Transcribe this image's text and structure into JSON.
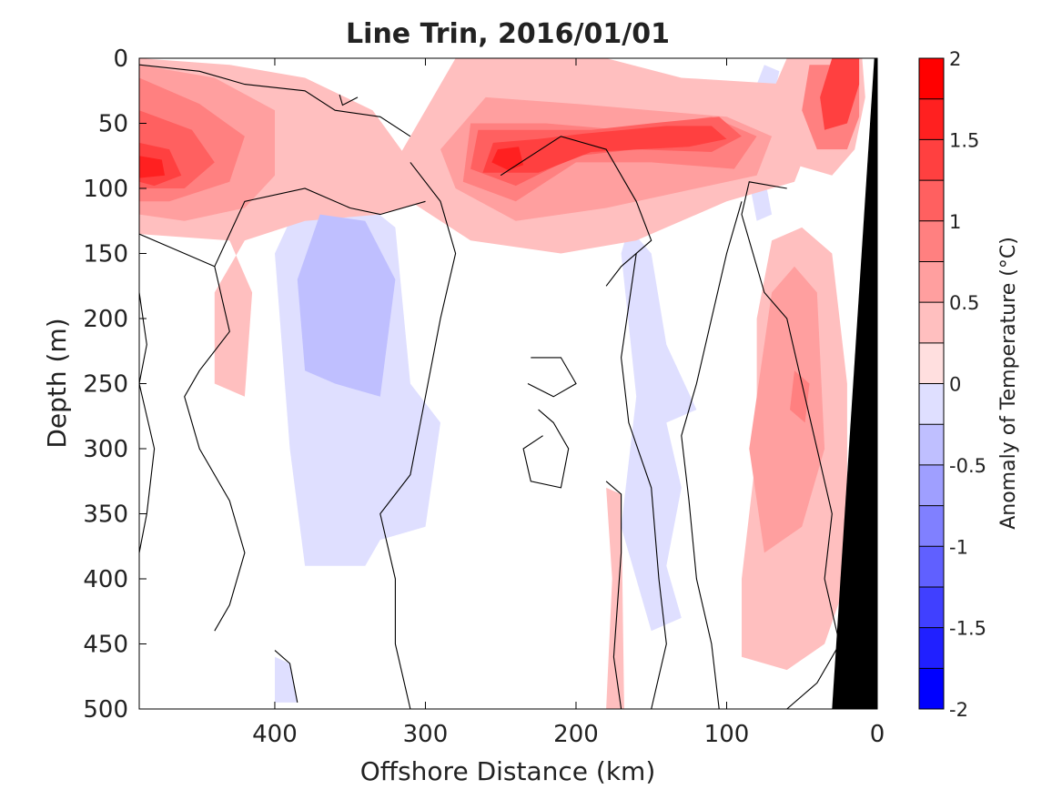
{
  "chart_data": {
    "type": "heatmap",
    "title": "Line Trin, 2016/01/01",
    "xlabel": "Offshore Distance (km)",
    "ylabel": "Depth (m)",
    "xlim": [
      490,
      0
    ],
    "ylim": [
      0,
      500
    ],
    "x_reversed": true,
    "y_reversed": true,
    "x_ticks": [
      400,
      300,
      200,
      100,
      0
    ],
    "y_ticks": [
      0,
      50,
      100,
      150,
      200,
      250,
      300,
      350,
      400,
      450,
      500
    ],
    "colorbar": {
      "label": "Anomaly of Temperature (°C)",
      "range": [
        -2,
        2
      ],
      "step": 0.25,
      "tick_values": [
        2,
        1.5,
        1,
        0.5,
        0,
        -0.5,
        -1,
        -1.5,
        -2
      ],
      "colormap": "blue-white-red",
      "colors_high": "#ff0000",
      "colors_low": "#0000ff",
      "neutral_band": [
        -0.25,
        0.25
      ]
    },
    "bathymetry_color": "#000000",
    "bathymetry": [
      [
        0,
        0
      ],
      [
        0,
        500
      ],
      [
        30,
        500
      ],
      [
        2,
        0
      ]
    ],
    "anomaly_regions": [
      {
        "sign": "warm",
        "level": 0.5,
        "polygon": [
          [
            490,
            0
          ],
          [
            430,
            5
          ],
          [
            380,
            15
          ],
          [
            335,
            40
          ],
          [
            310,
            80
          ],
          [
            300,
            110
          ],
          [
            330,
            120
          ],
          [
            380,
            125
          ],
          [
            420,
            140
          ],
          [
            440,
            180
          ],
          [
            440,
            250
          ],
          [
            420,
            260
          ],
          [
            415,
            180
          ],
          [
            430,
            140
          ],
          [
            490,
            135
          ]
        ]
      },
      {
        "sign": "warm",
        "level": 0.75,
        "polygon": [
          [
            490,
            5
          ],
          [
            440,
            15
          ],
          [
            400,
            40
          ],
          [
            400,
            90
          ],
          [
            420,
            115
          ],
          [
            460,
            125
          ],
          [
            490,
            120
          ]
        ]
      },
      {
        "sign": "warm",
        "level": 1.0,
        "polygon": [
          [
            490,
            15
          ],
          [
            450,
            35
          ],
          [
            420,
            60
          ],
          [
            430,
            95
          ],
          [
            470,
            110
          ],
          [
            490,
            110
          ]
        ]
      },
      {
        "sign": "warm",
        "level": 1.25,
        "polygon": [
          [
            490,
            40
          ],
          [
            455,
            55
          ],
          [
            440,
            80
          ],
          [
            460,
            100
          ],
          [
            490,
            100
          ]
        ]
      },
      {
        "sign": "warm",
        "level": 1.5,
        "polygon": [
          [
            490,
            65
          ],
          [
            470,
            70
          ],
          [
            462,
            90
          ],
          [
            480,
            98
          ],
          [
            490,
            95
          ]
        ]
      },
      {
        "sign": "warm",
        "level": 1.75,
        "polygon": [
          [
            490,
            75
          ],
          [
            475,
            78
          ],
          [
            473,
            90
          ],
          [
            490,
            92
          ]
        ]
      },
      {
        "sign": "warm",
        "level": 0.5,
        "polygon": [
          [
            280,
            0
          ],
          [
            180,
            0
          ],
          [
            130,
            15
          ],
          [
            60,
            20
          ],
          [
            40,
            50
          ],
          [
            55,
            95
          ],
          [
            100,
            110
          ],
          [
            160,
            140
          ],
          [
            210,
            150
          ],
          [
            270,
            140
          ],
          [
            310,
            110
          ],
          [
            320,
            80
          ],
          [
            300,
            40
          ]
        ]
      },
      {
        "sign": "warm",
        "level": 0.75,
        "polygon": [
          [
            260,
            30
          ],
          [
            200,
            35
          ],
          [
            150,
            40
          ],
          [
            100,
            45
          ],
          [
            70,
            60
          ],
          [
            80,
            90
          ],
          [
            120,
            100
          ],
          [
            180,
            115
          ],
          [
            240,
            125
          ],
          [
            280,
            100
          ],
          [
            290,
            70
          ]
        ]
      },
      {
        "sign": "warm",
        "level": 1.0,
        "polygon": [
          [
            270,
            50
          ],
          [
            220,
            50
          ],
          [
            170,
            55
          ],
          [
            110,
            45
          ],
          [
            80,
            60
          ],
          [
            95,
            85
          ],
          [
            150,
            80
          ],
          [
            200,
            80
          ],
          [
            240,
            110
          ],
          [
            275,
            95
          ]
        ]
      },
      {
        "sign": "warm",
        "level": 1.25,
        "polygon": [
          [
            265,
            55
          ],
          [
            230,
            55
          ],
          [
            190,
            55
          ],
          [
            150,
            50
          ],
          [
            105,
            45
          ],
          [
            90,
            60
          ],
          [
            110,
            72
          ],
          [
            160,
            70
          ],
          [
            200,
            75
          ],
          [
            240,
            98
          ],
          [
            270,
            85
          ]
        ]
      },
      {
        "sign": "warm",
        "level": 1.5,
        "polygon": [
          [
            255,
            65
          ],
          [
            225,
            62
          ],
          [
            195,
            58
          ],
          [
            140,
            52
          ],
          [
            110,
            52
          ],
          [
            100,
            62
          ],
          [
            125,
            68
          ],
          [
            190,
            72
          ],
          [
            225,
            88
          ],
          [
            262,
            88
          ]
        ]
      },
      {
        "sign": "warm",
        "level": 1.75,
        "polygon": [
          [
            252,
            70
          ],
          [
            238,
            68
          ],
          [
            235,
            82
          ],
          [
            245,
            86
          ],
          [
            256,
            80
          ]
        ]
      },
      {
        "sign": "warm",
        "level": 0.5,
        "polygon": [
          [
            60,
            0
          ],
          [
            10,
            0
          ],
          [
            8,
            30
          ],
          [
            15,
            70
          ],
          [
            30,
            90
          ],
          [
            60,
            80
          ],
          [
            75,
            40
          ]
        ]
      },
      {
        "sign": "warm",
        "level": 1.0,
        "polygon": [
          [
            45,
            5
          ],
          [
            12,
            5
          ],
          [
            12,
            45
          ],
          [
            20,
            70
          ],
          [
            40,
            70
          ],
          [
            50,
            40
          ]
        ]
      },
      {
        "sign": "warm",
        "level": 1.5,
        "polygon": [
          [
            30,
            0
          ],
          [
            12,
            0
          ],
          [
            12,
            20
          ],
          [
            20,
            50
          ],
          [
            35,
            55
          ],
          [
            38,
            30
          ]
        ]
      },
      {
        "sign": "warm",
        "level": 0.5,
        "polygon": [
          [
            80,
            200
          ],
          [
            70,
            140
          ],
          [
            50,
            130
          ],
          [
            30,
            150
          ],
          [
            20,
            250
          ],
          [
            20,
            400
          ],
          [
            35,
            450
          ],
          [
            60,
            470
          ],
          [
            90,
            460
          ],
          [
            90,
            400
          ],
          [
            80,
            300
          ]
        ]
      },
      {
        "sign": "warm",
        "level": 0.75,
        "polygon": [
          [
            70,
            180
          ],
          [
            55,
            160
          ],
          [
            40,
            180
          ],
          [
            35,
            300
          ],
          [
            50,
            360
          ],
          [
            75,
            380
          ],
          [
            85,
            300
          ]
        ]
      },
      {
        "sign": "warm",
        "level": 1.0,
        "polygon": [
          [
            55,
            240
          ],
          [
            45,
            250
          ],
          [
            48,
            280
          ],
          [
            58,
            270
          ]
        ]
      },
      {
        "sign": "warm",
        "level": 0.5,
        "polygon": [
          [
            180,
            330
          ],
          [
            170,
            335
          ],
          [
            168,
            500
          ],
          [
            180,
            500
          ],
          [
            176,
            400
          ]
        ]
      },
      {
        "sign": "cold",
        "level": -0.25,
        "polygon": [
          [
            380,
            100
          ],
          [
            350,
            102
          ],
          [
            320,
            130
          ],
          [
            310,
            250
          ],
          [
            290,
            280
          ],
          [
            300,
            360
          ],
          [
            330,
            370
          ],
          [
            340,
            390
          ],
          [
            380,
            390
          ],
          [
            390,
            300
          ],
          [
            400,
            150
          ]
        ]
      },
      {
        "sign": "cold",
        "level": -0.5,
        "polygon": [
          [
            370,
            120
          ],
          [
            340,
            125
          ],
          [
            320,
            170
          ],
          [
            330,
            260
          ],
          [
            360,
            250
          ],
          [
            380,
            240
          ],
          [
            385,
            170
          ]
        ]
      },
      {
        "sign": "cold",
        "level": -0.25,
        "polygon": [
          [
            165,
            130
          ],
          [
            150,
            150
          ],
          [
            140,
            220
          ],
          [
            120,
            270
          ],
          [
            140,
            280
          ],
          [
            130,
            330
          ],
          [
            140,
            390
          ],
          [
            130,
            430
          ],
          [
            150,
            440
          ],
          [
            170,
            360
          ],
          [
            160,
            260
          ],
          [
            170,
            150
          ]
        ]
      },
      {
        "sign": "cold",
        "level": -0.25,
        "polygon": [
          [
            75,
            5
          ],
          [
            65,
            10
          ],
          [
            68,
            25
          ],
          [
            80,
            20
          ]
        ]
      },
      {
        "sign": "cold",
        "level": -0.25,
        "polygon": [
          [
            75,
            90
          ],
          [
            70,
            120
          ],
          [
            80,
            125
          ],
          [
            85,
            95
          ]
        ]
      },
      {
        "sign": "cold",
        "level": -0.25,
        "polygon": [
          [
            400,
            460
          ],
          [
            390,
            465
          ],
          [
            385,
            495
          ],
          [
            400,
            495
          ]
        ]
      }
    ],
    "zero_contours": [
      [
        [
          490,
          135
        ],
        [
          460,
          150
        ],
        [
          440,
          160
        ],
        [
          430,
          210
        ],
        [
          450,
          240
        ],
        [
          460,
          260
        ],
        [
          450,
          300
        ],
        [
          430,
          340
        ],
        [
          420,
          380
        ],
        [
          430,
          420
        ],
        [
          440,
          440
        ]
      ],
      [
        [
          300,
          110
        ],
        [
          330,
          120
        ],
        [
          350,
          115
        ],
        [
          380,
          100
        ],
        [
          420,
          110
        ],
        [
          440,
          160
        ]
      ],
      [
        [
          250,
          90
        ],
        [
          210,
          60
        ],
        [
          180,
          70
        ],
        [
          160,
          110
        ],
        [
          150,
          140
        ],
        [
          170,
          160
        ],
        [
          180,
          175
        ]
      ],
      [
        [
          310,
          60
        ],
        [
          330,
          45
        ],
        [
          360,
          40
        ],
        [
          380,
          25
        ],
        [
          420,
          20
        ],
        [
          450,
          10
        ],
        [
          490,
          5
        ]
      ],
      [
        [
          310,
          80
        ],
        [
          290,
          110
        ],
        [
          280,
          150
        ],
        [
          290,
          200
        ],
        [
          300,
          260
        ],
        [
          310,
          320
        ],
        [
          330,
          350
        ],
        [
          320,
          400
        ],
        [
          320,
          450
        ],
        [
          310,
          500
        ]
      ],
      [
        [
          160,
          150
        ],
        [
          170,
          230
        ],
        [
          165,
          280
        ],
        [
          150,
          330
        ],
        [
          145,
          400
        ],
        [
          140,
          450
        ],
        [
          150,
          500
        ]
      ],
      [
        [
          90,
          110
        ],
        [
          100,
          150
        ],
        [
          110,
          200
        ],
        [
          120,
          250
        ],
        [
          130,
          290
        ],
        [
          125,
          340
        ],
        [
          120,
          400
        ],
        [
          110,
          450
        ],
        [
          105,
          500
        ]
      ],
      [
        [
          60,
          100
        ],
        [
          85,
          95
        ],
        [
          90,
          120
        ],
        [
          75,
          180
        ],
        [
          60,
          200
        ],
        [
          50,
          250
        ],
        [
          40,
          300
        ],
        [
          30,
          350
        ],
        [
          35,
          400
        ],
        [
          25,
          450
        ],
        [
          40,
          480
        ],
        [
          60,
          500
        ]
      ],
      [
        [
          490,
          180
        ],
        [
          485,
          220
        ],
        [
          490,
          250
        ],
        [
          480,
          300
        ],
        [
          485,
          350
        ],
        [
          490,
          380
        ]
      ],
      [
        [
          225,
          270
        ],
        [
          215,
          280
        ],
        [
          205,
          300
        ],
        [
          210,
          330
        ],
        [
          230,
          325
        ],
        [
          235,
          300
        ],
        [
          222,
          290
        ]
      ],
      [
        [
          180,
          325
        ],
        [
          170,
          335
        ],
        [
          170,
          380
        ],
        [
          175,
          460
        ],
        [
          170,
          500
        ]
      ],
      [
        [
          400,
          455
        ],
        [
          390,
          465
        ],
        [
          385,
          495
        ]
      ],
      [
        [
          230,
          230
        ],
        [
          210,
          230
        ],
        [
          200,
          250
        ],
        [
          215,
          260
        ],
        [
          232,
          250
        ]
      ],
      [
        [
          345,
          30
        ],
        [
          355,
          36
        ],
        [
          357,
          28
        ]
      ]
    ]
  }
}
